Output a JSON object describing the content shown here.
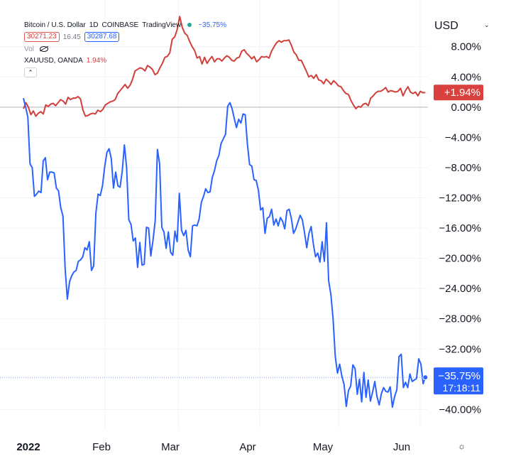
{
  "legend": {
    "symbol": "Bitcoin / U.S. Dollar",
    "interval": "1D",
    "exchange": "COINBASE",
    "source": "TradingView",
    "change_pct": "−35.75%",
    "bid": "30271.23",
    "spread": "16.45",
    "ask": "30287.68",
    "vol_label": "Vol",
    "compare_symbol": "XAUUSD, OANDA",
    "compare_pct": "1.94%",
    "collapse_icon": "chevron-up-icon"
  },
  "price_axis": {
    "currency": "USD",
    "currency_menu_icon": "chevron-down-icon"
  },
  "settings_icon": "gear-icon",
  "chart_data": {
    "type": "line",
    "x_tick_labels": [
      "2022",
      "Feb",
      "Mar",
      "Apr",
      "May",
      "Jun"
    ],
    "y_tick_labels": [
      "8.00%",
      "4.00%",
      "0.00%",
      "−4.00%",
      "−8.00%",
      "−12.00%",
      "−16.00%",
      "−20.00%",
      "−24.00%",
      "−28.00%",
      "−32.00%",
      "−40.00%"
    ],
    "y_ticks": [
      8,
      4,
      0,
      -4,
      -8,
      -12,
      -16,
      -20,
      -24,
      -28,
      -32,
      -40
    ],
    "ylim": [
      -42.5,
      12.3
    ],
    "xlim": [
      0,
      154
    ],
    "month_starts": [
      0,
      31,
      59,
      90,
      120,
      151
    ],
    "series": [
      {
        "name": "XAUUSD, OANDA",
        "color": "#d23f3a",
        "label": "+1.94%",
        "last": 1.94,
        "values": [
          -0.2,
          0.6,
          0.0,
          -1.0,
          -0.5,
          -1.2,
          -0.8,
          -0.6,
          -0.9,
          0.3,
          0.1,
          0.4,
          0.5,
          0.2,
          0.6,
          1.0,
          0.8,
          0.4,
          1.3,
          1.0,
          1.2,
          1.2,
          1.4,
          1.1,
          -0.4,
          -1.2,
          -1.1,
          -0.9,
          -0.8,
          -0.9,
          -0.4,
          -0.6,
          -0.3,
          0.3,
          0.5,
          0.7,
          0.8,
          1.0,
          1.8,
          2.2,
          2.6,
          3.0,
          2.5,
          2.9,
          3.7,
          4.8,
          5.0,
          5.2,
          5.1,
          4.8,
          5.5,
          5.3,
          5.0,
          4.3,
          4.5,
          5.2,
          5.8,
          6.6,
          6.7,
          7.2,
          9.0,
          9.3,
          10.3,
          12.0,
          10.6,
          9.8,
          9.5,
          8.7,
          8.0,
          7.5,
          6.5,
          6.7,
          5.7,
          6.6,
          5.8,
          6.3,
          6.7,
          6.0,
          6.4,
          6.4,
          6.1,
          6.5,
          6.8,
          6.6,
          6.2,
          6.1,
          6.5,
          6.6,
          7.4,
          7.6,
          7.1,
          6.8,
          6.4,
          6.7,
          6.0,
          6.3,
          6.7,
          6.6,
          6.7,
          6.5,
          7.4,
          8.0,
          8.5,
          8.8,
          8.6,
          8.8,
          8.8,
          8.9,
          8.2,
          7.3,
          6.9,
          6.2,
          6.2,
          5.5,
          4.8,
          4.0,
          4.2,
          3.8,
          4.3,
          3.6,
          3.5,
          3.1,
          3.7,
          3.4,
          3.0,
          3.5,
          3.2,
          2.8,
          2.7,
          2.2,
          1.8,
          1.7,
          0.9,
          0.3,
          -0.2,
          0.1,
          0.0,
          0.4,
          0.5,
          0.2,
          1.2,
          1.5,
          1.9,
          2.1,
          2.1,
          2.3,
          2.6,
          2.0,
          2.2,
          2.1,
          2.0,
          2.1,
          2.5,
          1.5,
          2.2,
          2.7,
          2.0,
          1.8,
          2.0,
          1.5,
          2.1,
          1.9,
          1.94
        ]
      },
      {
        "name": "Bitcoin / U.S. Dollar",
        "color": "#2962ff",
        "label": "−35.75%",
        "time_label": "17:18:11",
        "last": -35.75,
        "values": [
          1.2,
          0.0,
          -1.3,
          -7.5,
          -8.0,
          -11.8,
          -11.5,
          -11.1,
          -11.3,
          -7.1,
          -6.7,
          -9.6,
          -8.6,
          -8.6,
          -8.7,
          -10.7,
          -11.1,
          -13.3,
          -14.4,
          -21.4,
          -25.4,
          -23.1,
          -22.3,
          -21.8,
          -21.6,
          -20.4,
          -20.2,
          -19.8,
          -18.6,
          -18.9,
          -17.8,
          -21.6,
          -21.0,
          -14.0,
          -11.5,
          -11.7,
          -10.4,
          -7.9,
          -6.0,
          -5.5,
          -6.8,
          -10.7,
          -8.6,
          -10.4,
          -10.6,
          -8.4,
          -5.0,
          -8.0,
          -14.9,
          -15.5,
          -17.7,
          -17.3,
          -21.2,
          -17.9,
          -20.9,
          -20.8,
          -15.9,
          -16.0,
          -19.7,
          -17.6,
          -15.0,
          -5.6,
          -7.5,
          -15.9,
          -16.5,
          -18.7,
          -16.5,
          -19.2,
          -19.6,
          -16.4,
          -17.8,
          -11.4,
          -16.3,
          -17.0,
          -16.3,
          -18.9,
          -19.8,
          -15.7,
          -15.6,
          -15.7,
          -14.8,
          -12.6,
          -11.8,
          -10.8,
          -11.3,
          -11.2,
          -9.3,
          -8.4,
          -7.1,
          -6.4,
          -4.8,
          -4.2,
          -3.6,
          0.1,
          0.6,
          -0.2,
          -1.5,
          -2.7,
          -1.6,
          -2.1,
          -0.9,
          -1.0,
          -4.9,
          -7.6,
          -7.8,
          -9.6,
          -9.7,
          -11.0,
          -13.6,
          -13.3,
          -16.7,
          -14.7,
          -14.5,
          -13.5,
          -15.6,
          -14.8,
          -15.7,
          -14.6,
          -15.1,
          -16.1,
          -13.7,
          -13.5,
          -14.7,
          -16.7,
          -16.1,
          -15.2,
          -14.3,
          -14.9,
          -16.6,
          -18.6,
          -16.7,
          -15.8,
          -18.1,
          -19.8,
          -19.3,
          -20.5,
          -17.8,
          -20.4,
          -15.3,
          -23.0,
          -24.8,
          -28.0,
          -33.0,
          -35.2,
          -34.0,
          -35.6,
          -36.7,
          -39.6,
          -37.5,
          -36.9,
          -34.1,
          -34.6,
          -38.0,
          -36.0,
          -39.0,
          -35.1,
          -38.4,
          -36.1,
          -38.9,
          -37.7,
          -36.3,
          -38.3,
          -39.4,
          -37.9,
          -37.1,
          -37.6,
          -37.7,
          -37.0,
          -39.7,
          -38.3,
          -37.4,
          -33.0,
          -32.7,
          -37.1,
          -36.4,
          -37.1,
          -35.3,
          -36.3,
          -36.1,
          -35.9,
          -33.3,
          -34.0,
          -36.6,
          -35.75
        ]
      }
    ]
  }
}
